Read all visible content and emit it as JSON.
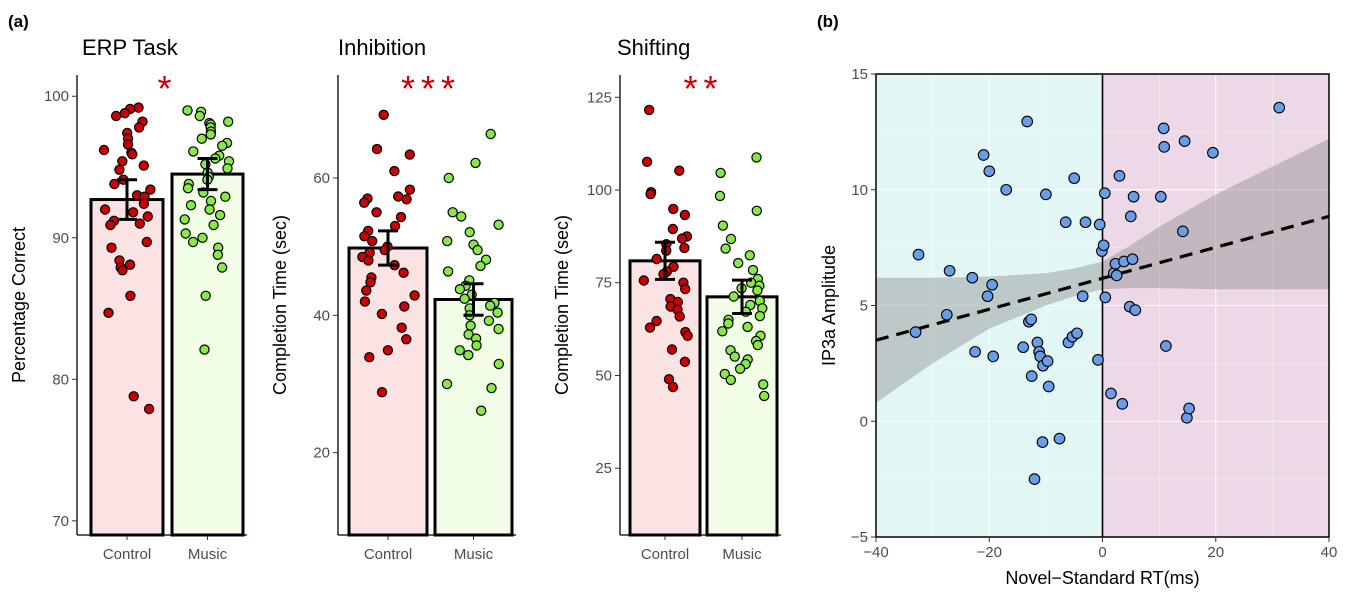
{
  "panel_a_label": "(a)",
  "panel_b_label": "(b)",
  "chart_data": [
    {
      "type": "bar",
      "panel": "a",
      "title": "ERP Task",
      "ylabel": "Percentage Correct",
      "xlabel": "",
      "ylim": [
        69,
        101.5
      ],
      "yticks": [
        70,
        80,
        90,
        100
      ],
      "categories": [
        "Control",
        "Music"
      ],
      "values": [
        92.7,
        94.5
      ],
      "errors": [
        1.4,
        1.1
      ],
      "significance": "*",
      "colors": {
        "Control_fill": "#fbe3e4",
        "Control_points": "#cc0000",
        "Music_fill": "#f2fde8",
        "Music_points": "#88e84a"
      },
      "points": {
        "Control": [
          99.2,
          99.1,
          98.8,
          98.6,
          98.2,
          97.8,
          97.4,
          97.0,
          96.6,
          96.2,
          96.0,
          95.9,
          95.4,
          95.1,
          94.8,
          94.1,
          93.8,
          93.4,
          93.0,
          92.9,
          92.4,
          92.0,
          91.8,
          91.5,
          91.2,
          91.0,
          90.9,
          89.7,
          89.3,
          88.4,
          88.1,
          87.9,
          87.7,
          85.9,
          84.7,
          78.8,
          77.9
        ],
        "Music": [
          99.0,
          98.9,
          98.6,
          98.2,
          98.1,
          98.0,
          97.8,
          97.5,
          97.3,
          97.0,
          96.7,
          96.5,
          96.1,
          95.8,
          95.6,
          95.4,
          95.2,
          94.9,
          94.6,
          94.3,
          94.1,
          93.8,
          93.5,
          93.2,
          92.9,
          92.6,
          92.3,
          92.0,
          91.6,
          91.3,
          90.9,
          90.3,
          90.0,
          89.7,
          89.3,
          88.8,
          87.9,
          85.9,
          82.1
        ]
      }
    },
    {
      "type": "bar",
      "panel": "a",
      "title": "Inhibition",
      "ylabel": "Completion Time (sec)",
      "xlabel": "",
      "ylim": [
        8,
        75
      ],
      "yticks": [
        20,
        40,
        60
      ],
      "categories": [
        "Control",
        "Music"
      ],
      "values": [
        49.8,
        42.3
      ],
      "errors": [
        2.5,
        2.3
      ],
      "significance": "***",
      "colors": {
        "Control_fill": "#fbe3e4",
        "Control_points": "#cc0000",
        "Music_fill": "#f2fde8",
        "Music_points": "#88e84a"
      },
      "points": {
        "Control": [
          69.2,
          64.2,
          63.4,
          61.0,
          58.3,
          57.3,
          57.0,
          56.9,
          56.4,
          55.0,
          54.3,
          53.0,
          52.3,
          51.5,
          50.8,
          50.0,
          49.5,
          49.1,
          48.5,
          48.0,
          47.3,
          46.2,
          45.5,
          44.8,
          43.6,
          42.9,
          42.0,
          41.3,
          40.2,
          38.2,
          36.5,
          34.9,
          33.9,
          28.8
        ],
        "Music": [
          66.4,
          62.2,
          60.0,
          55.0,
          54.4,
          53.2,
          52.1,
          50.8,
          50.3,
          49.5,
          48.1,
          47.2,
          46.4,
          45.1,
          44.3,
          43.8,
          43.0,
          42.4,
          41.8,
          41.4,
          41.0,
          40.4,
          40.0,
          39.2,
          38.5,
          38.0,
          37.2,
          36.6,
          35.6,
          34.9,
          34.2,
          32.9,
          30.0,
          29.4,
          26.1
        ]
      }
    },
    {
      "type": "bar",
      "panel": "a",
      "title": "Shifting",
      "ylabel": "Completion Time (sec)",
      "xlabel": "",
      "ylim": [
        7,
        131
      ],
      "yticks": [
        25,
        50,
        75,
        100,
        125
      ],
      "categories": [
        "Control",
        "Music"
      ],
      "values": [
        80.9,
        71.2
      ],
      "errors": [
        5.0,
        4.5
      ],
      "significance": "**",
      "colors": {
        "Control_fill": "#fbe3e4",
        "Control_points": "#cc0000",
        "Music_fill": "#f2fde8",
        "Music_points": "#88e84a"
      },
      "points": {
        "Control": [
          121.6,
          107.6,
          105.2,
          99.4,
          98.9,
          94.9,
          93.3,
          89.5,
          87.5,
          86.9,
          85.4,
          84.4,
          83.6,
          81.4,
          79.3,
          78.0,
          77.3,
          75.6,
          75.0,
          73.3,
          70.6,
          69.8,
          68.6,
          67.7,
          65.9,
          64.7,
          62.9,
          61.7,
          60.7,
          57.0,
          53.7,
          49.0,
          46.9
        ],
        "Music": [
          108.8,
          104.6,
          98.4,
          94.4,
          90.4,
          86.8,
          84.2,
          82.4,
          80.3,
          78.4,
          76.0,
          75.0,
          74.2,
          73.5,
          72.9,
          71.3,
          70.1,
          69.0,
          68.1,
          67.2,
          66.0,
          65.0,
          64.0,
          63.1,
          61.9,
          60.7,
          59.3,
          58.2,
          56.8,
          55.1,
          54.3,
          53.1,
          51.8,
          50.4,
          48.8,
          47.6,
          44.5
        ]
      }
    },
    {
      "type": "scatter",
      "panel": "b",
      "title": "",
      "xlabel": "Novel−Standard RT(ms)",
      "ylabel": "IP3a Amplitude",
      "xlim": [
        -40,
        40
      ],
      "ylim": [
        -5,
        15
      ],
      "xticks": [
        -40,
        -20,
        0,
        20,
        40
      ],
      "xtick_labels": [
        "−40",
        "−20",
        "0",
        "20",
        "40"
      ],
      "yticks": [
        -5,
        0,
        5,
        10,
        15
      ],
      "ytick_labels": [
        "−5",
        "0",
        "5",
        "10",
        "15"
      ],
      "grid": true,
      "regions": [
        {
          "x_range": [
            -40,
            0
          ],
          "color": "#e2f7f5"
        },
        {
          "x_range": [
            0,
            40
          ],
          "color": "#ecd8e6"
        }
      ],
      "fit_line": {
        "x": [
          -40,
          40
        ],
        "y": [
          3.5,
          8.85
        ],
        "style": "dashed"
      },
      "confidence_band": {
        "x": [
          -40,
          -30,
          -20,
          -10,
          -5,
          0,
          5,
          10,
          20,
          30,
          40
        ],
        "lower": [
          0.8,
          2.5,
          4.0,
          5.0,
          5.4,
          5.7,
          5.75,
          5.75,
          5.7,
          5.7,
          5.7
        ],
        "upper": [
          6.2,
          6.2,
          6.25,
          6.4,
          6.6,
          6.9,
          7.6,
          8.4,
          9.8,
          11.0,
          12.2
        ]
      },
      "point_color": "#6a9de8",
      "points": [
        [
          -33,
          3.85
        ],
        [
          -32.5,
          7.2
        ],
        [
          -27.5,
          4.6
        ],
        [
          -27,
          6.5
        ],
        [
          -23,
          6.2
        ],
        [
          -22.5,
          3.0
        ],
        [
          -21,
          11.5
        ],
        [
          -20.3,
          5.4
        ],
        [
          -20,
          10.8
        ],
        [
          -19.5,
          5.9
        ],
        [
          -19.3,
          2.8
        ],
        [
          -17,
          10.0
        ],
        [
          -14,
          3.2
        ],
        [
          -13.3,
          12.95
        ],
        [
          -13,
          4.3
        ],
        [
          -12.6,
          4.4
        ],
        [
          -12.5,
          1.95
        ],
        [
          -12,
          -2.5
        ],
        [
          -11.5,
          3.4
        ],
        [
          -11.2,
          3.0
        ],
        [
          -11,
          2.8
        ],
        [
          -10.6,
          -0.9
        ],
        [
          -10.5,
          2.4
        ],
        [
          -10,
          9.8
        ],
        [
          -9.7,
          2.6
        ],
        [
          -9.5,
          1.5
        ],
        [
          -7.6,
          -0.75
        ],
        [
          -6.5,
          8.6
        ],
        [
          -6,
          3.4
        ],
        [
          -5.3,
          3.65
        ],
        [
          -5,
          10.5
        ],
        [
          -4.5,
          3.8
        ],
        [
          -3.5,
          5.4
        ],
        [
          -3,
          8.6
        ],
        [
          -0.8,
          2.65
        ],
        [
          -0.5,
          8.5
        ],
        [
          -0.1,
          7.35
        ],
        [
          0.2,
          7.6
        ],
        [
          0.4,
          9.85
        ],
        [
          0.5,
          5.35
        ],
        [
          1.5,
          1.2
        ],
        [
          2,
          6.4
        ],
        [
          2.3,
          6.8
        ],
        [
          2.5,
          6.3
        ],
        [
          3,
          10.6
        ],
        [
          3.5,
          0.75
        ],
        [
          3.8,
          6.9
        ],
        [
          4.8,
          4.95
        ],
        [
          5,
          8.85
        ],
        [
          5.3,
          7.0
        ],
        [
          5.5,
          9.7
        ],
        [
          5.8,
          4.8
        ],
        [
          10.3,
          9.7
        ],
        [
          10.8,
          12.65
        ],
        [
          10.9,
          11.85
        ],
        [
          11.2,
          3.25
        ],
        [
          14.2,
          8.2
        ],
        [
          14.5,
          12.1
        ],
        [
          14.9,
          0.15
        ],
        [
          15.3,
          0.55
        ],
        [
          19.5,
          11.6
        ],
        [
          31.2,
          13.55
        ]
      ]
    }
  ]
}
